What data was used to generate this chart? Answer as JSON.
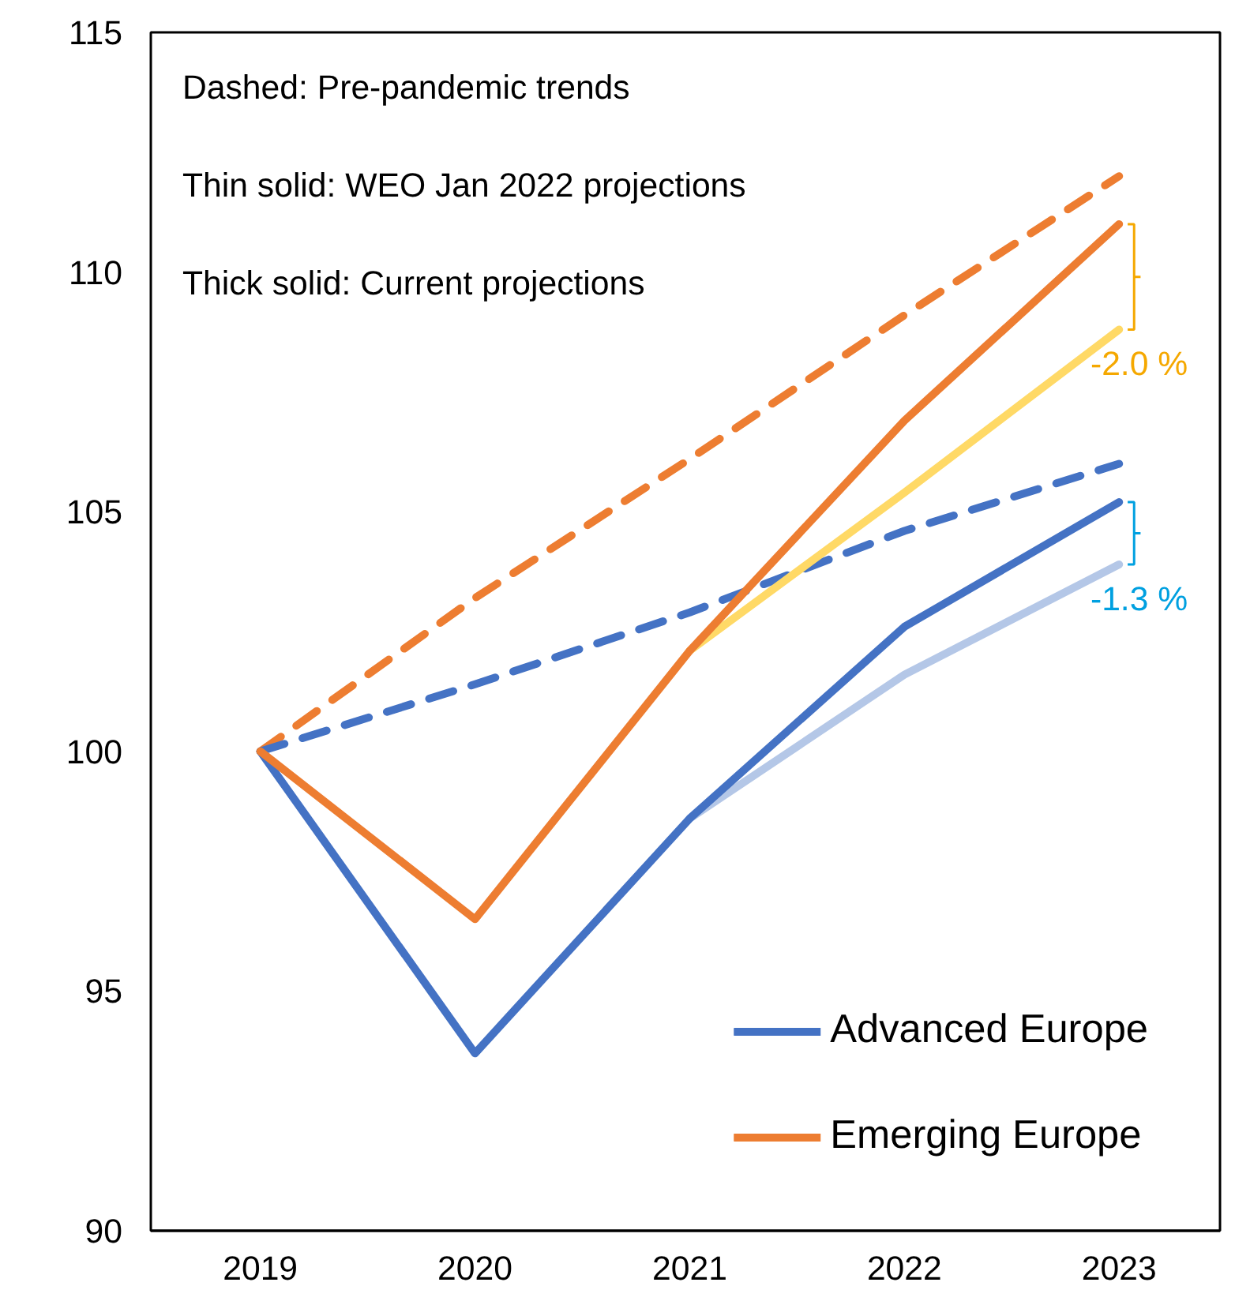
{
  "chart_data": {
    "type": "line",
    "categories": [
      "2019",
      "2020",
      "2021",
      "2022",
      "2023"
    ],
    "series": [
      {
        "color": "#ed7d31",
        "line_style": "dashed",
        "values": [
          100,
          103.2,
          106.1,
          109.1,
          112.0
        ]
      },
      {
        "color": "#4472c4",
        "line_style": "dashed",
        "values": [
          100,
          101.4,
          102.9,
          104.6,
          106.0
        ]
      },
      {
        "color": "#ffd966",
        "values": [
          null,
          null,
          102.1,
          105.4,
          108.8
        ]
      },
      {
        "color": "#b4c7e7",
        "values": [
          null,
          null,
          98.6,
          101.6,
          103.9
        ]
      },
      {
        "name": "Advanced Europe",
        "color": "#4472c4",
        "values": [
          100,
          93.7,
          98.6,
          102.6,
          105.2
        ]
      },
      {
        "name": "Emerging Europe",
        "color": "#ed7d31",
        "values": [
          100,
          96.5,
          102.1,
          106.9,
          111.0
        ]
      }
    ],
    "ylim": [
      90,
      115
    ],
    "yticks": [
      90,
      95,
      100,
      105,
      110,
      115
    ],
    "grid": false,
    "legend": "bottom right",
    "line_style": "solid",
    "marker": "none",
    "annotations": [
      "Dashed: Pre-pandemic trends",
      "Thin solid: WEO Jan 2022 projections",
      "Thick solid: Current projections",
      "-2.0 %",
      "-1.3 %"
    ]
  }
}
